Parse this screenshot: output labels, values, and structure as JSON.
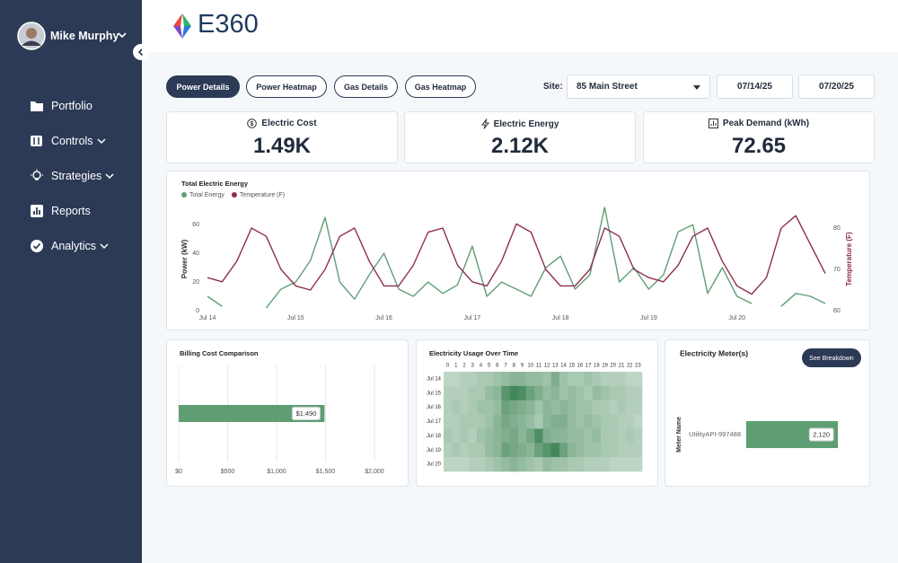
{
  "sidebar": {
    "user_name": "Mike Murphy",
    "nav": [
      "Portfolio",
      "Controls",
      "Strategies",
      "Reports",
      "Analytics"
    ]
  },
  "header": {
    "logo": "E360"
  },
  "tabs": [
    "Power Details",
    "Power Heatmap",
    "Gas Details",
    "Gas Heatmap"
  ],
  "filters": {
    "site_label": "Site:",
    "site": "85 Main Street",
    "start_date": "07/14/25",
    "end_date": "07/20/25"
  },
  "kpis": [
    {
      "label": "Electric Cost",
      "value": "1.49K"
    },
    {
      "label": "Electric Energy",
      "value": "2.12K"
    },
    {
      "label": "Peak Demand (kWh)",
      "value": "72.65"
    }
  ],
  "chart_data": [
    {
      "type": "line",
      "title": "Total Electric Energy",
      "ylabel": "Power (kW)",
      "y2label": "Temperature (F)",
      "x": [
        0,
        4,
        8,
        12,
        16,
        20,
        24,
        28,
        32,
        36,
        40,
        44,
        48,
        52,
        56,
        60,
        64,
        68,
        72,
        76,
        80,
        84,
        88,
        92,
        96,
        100,
        104,
        108,
        112,
        116,
        120,
        124,
        128,
        132,
        136,
        140,
        144,
        148,
        152,
        156,
        160,
        164,
        168
      ],
      "xlim": [
        0,
        168
      ],
      "xticks": [
        {
          "value": 0,
          "label": "Jul 14"
        },
        {
          "value": 24,
          "label": "Jul 15"
        },
        {
          "value": 48,
          "label": "Jul 16"
        },
        {
          "value": 72,
          "label": "Jul 17"
        },
        {
          "value": 96,
          "label": "Jul 18"
        },
        {
          "value": 120,
          "label": "Jul 19"
        },
        {
          "value": 144,
          "label": "Jul 20"
        }
      ],
      "ylim": [
        0,
        72
      ],
      "yticks": [
        0,
        20,
        40,
        60
      ],
      "y2lim": [
        60,
        85
      ],
      "y2ticks": [
        60,
        70,
        80
      ],
      "series": [
        {
          "name": "Total Energy",
          "color": "#5f9e73",
          "values": [
            10,
            3,
            null,
            null,
            2,
            15,
            20,
            35,
            65,
            20,
            8,
            25,
            40,
            15,
            10,
            20,
            12,
            18,
            45,
            10,
            20,
            15,
            10,
            30,
            38,
            15,
            25,
            72,
            20,
            30,
            15,
            25,
            55,
            60,
            12,
            30,
            10,
            5,
            null,
            3,
            12,
            10,
            5
          ]
        },
        {
          "name": "Temperature (F)",
          "color": "#8e2f4c",
          "axis": "y2",
          "values": [
            68,
            67,
            72,
            80,
            78,
            70,
            66,
            65,
            70,
            78,
            80,
            72,
            66,
            66,
            71,
            79,
            80,
            71,
            67,
            66,
            72,
            81,
            79,
            70,
            66,
            66,
            70,
            80,
            78,
            70,
            68,
            67,
            71,
            78,
            80,
            72,
            66,
            64,
            68,
            80,
            83,
            76,
            69
          ]
        }
      ]
    },
    {
      "type": "bar",
      "title": "Billing Cost Comparison",
      "categories": [
        null
      ],
      "values": [
        1490
      ],
      "value_labels": [
        "$1,490"
      ],
      "color": "#5f9e73",
      "xlim": [
        0,
        2000
      ],
      "xticks": [
        {
          "value": 0,
          "label": "$0"
        },
        {
          "value": 500,
          "label": "$500"
        },
        {
          "value": 1000,
          "label": "$1,000"
        },
        {
          "value": 1500,
          "label": "$1,500"
        },
        {
          "value": 2000,
          "label": "$2,000"
        }
      ],
      "grid": true
    },
    {
      "type": "heatmap",
      "title": "Electricity Usage Over Time",
      "x": [
        0,
        1,
        2,
        3,
        4,
        5,
        6,
        7,
        8,
        9,
        10,
        11,
        12,
        13,
        14,
        15,
        16,
        17,
        18,
        19,
        20,
        21,
        22,
        23
      ],
      "categories": [
        "Jul 14",
        "Jul 15",
        "Jul 16",
        "Jul 17",
        "Jul 18",
        "Jul 19",
        "Jul 20"
      ],
      "values": [
        [
          4,
          4,
          5,
          5,
          6,
          6,
          7,
          8,
          9,
          9,
          8,
          8,
          7,
          10,
          7,
          6,
          6,
          7,
          6,
          5,
          5,
          5,
          4,
          4
        ],
        [
          5,
          5,
          5,
          6,
          6,
          8,
          9,
          14,
          16,
          15,
          12,
          10,
          8,
          9,
          7,
          8,
          7,
          6,
          8,
          7,
          6,
          6,
          5,
          5
        ],
        [
          5,
          6,
          5,
          6,
          7,
          7,
          8,
          12,
          11,
          10,
          9,
          7,
          9,
          8,
          9,
          8,
          7,
          7,
          6,
          6,
          5,
          6,
          5,
          5
        ],
        [
          5,
          5,
          6,
          6,
          6,
          7,
          9,
          11,
          10,
          9,
          8,
          6,
          9,
          10,
          10,
          8,
          7,
          8,
          7,
          6,
          6,
          5,
          5,
          4
        ],
        [
          6,
          5,
          6,
          5,
          7,
          8,
          9,
          10,
          11,
          9,
          11,
          15,
          10,
          9,
          9,
          8,
          8,
          7,
          8,
          6,
          6,
          5,
          6,
          5
        ],
        [
          5,
          6,
          5,
          6,
          6,
          8,
          9,
          12,
          11,
          10,
          9,
          12,
          14,
          16,
          12,
          9,
          8,
          7,
          7,
          6,
          6,
          5,
          5,
          5
        ],
        [
          4,
          4,
          4,
          5,
          5,
          6,
          7,
          8,
          9,
          8,
          7,
          6,
          8,
          7,
          7,
          6,
          6,
          5,
          5,
          5,
          4,
          4,
          4,
          4
        ]
      ],
      "zlim": [
        0,
        18
      ],
      "colors": [
        "#e6f0e8",
        "#2f7a48"
      ]
    },
    {
      "type": "bar",
      "title": "Electricity Meter(s)",
      "ylabel": "Meter Name",
      "button": "See Breakdown",
      "categories": [
        "UtilityAPI-997488"
      ],
      "values": [
        2120
      ],
      "value_labels": [
        "2,120"
      ],
      "color": "#5f9e73",
      "xlim": [
        0,
        2700
      ]
    }
  ]
}
